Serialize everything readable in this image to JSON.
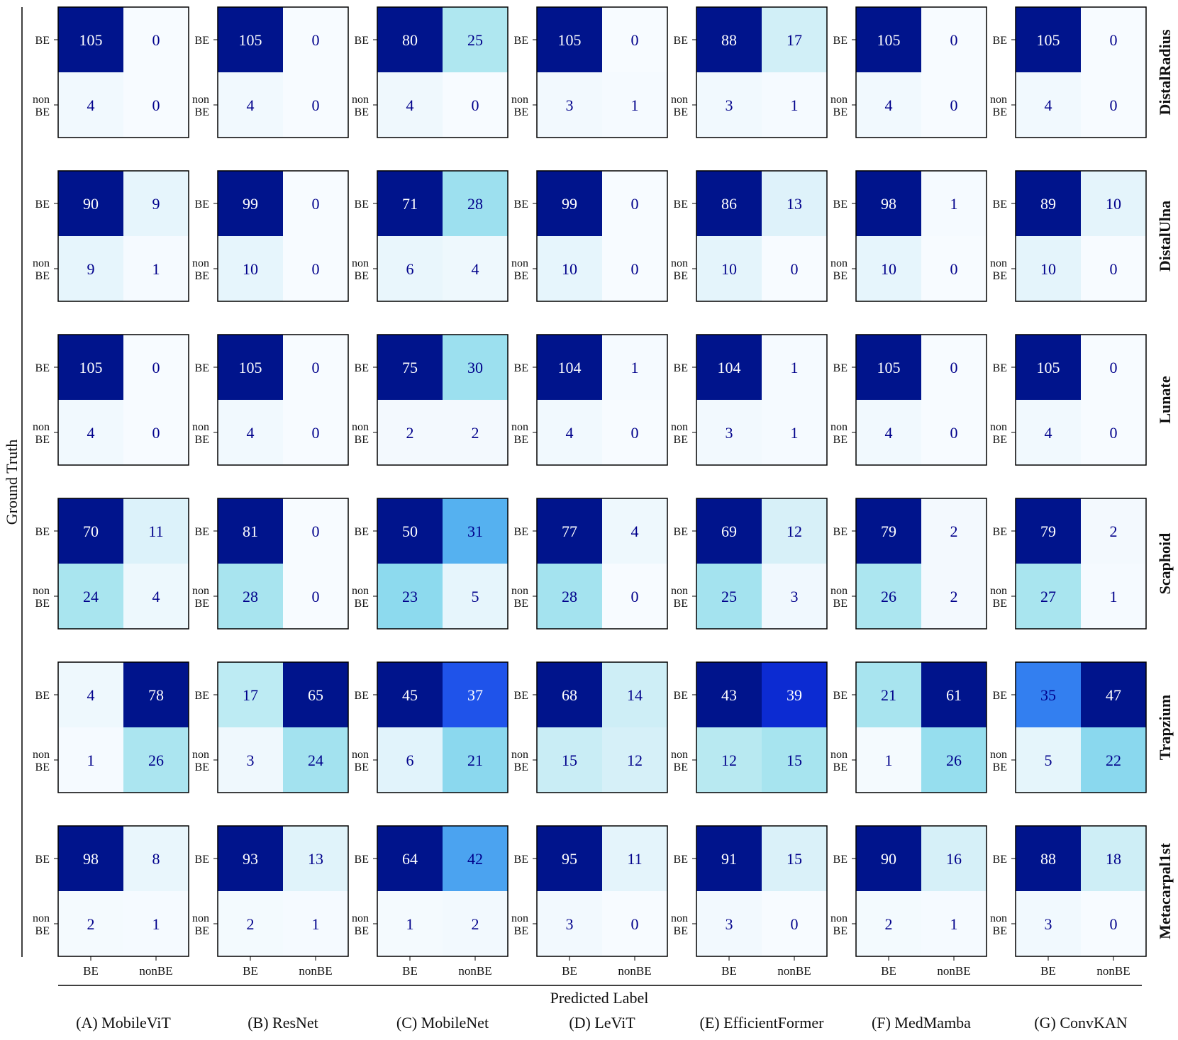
{
  "chart_data": {
    "type": "heatmap",
    "colormap": "Blues",
    "colors": {
      "text_on_light": "#00008B",
      "text_on_dark": "#ffffff",
      "border": "#000000"
    },
    "y_axis_label": "Ground Truth",
    "x_axis_label": "Predicted Label",
    "predicted_tick_labels": [
      "BE",
      "nonBE"
    ],
    "true_tick_labels": [
      "BE",
      "non BE"
    ],
    "models": [
      "(A) MobileViT",
      "(B) ResNet",
      "(C) MobileNet",
      "(D) LeViT",
      "(E) EfficientFormer",
      "(F) MedMamba",
      "(G) ConvKAN"
    ],
    "bones": [
      "DistalRadius",
      "DistalUlna",
      "Lunate",
      "Scaphoid",
      "Trapzium",
      "Metacarpal1st"
    ],
    "matrices": [
      [
        [
          [
            105,
            0
          ],
          [
            4,
            0
          ]
        ],
        [
          [
            105,
            0
          ],
          [
            4,
            0
          ]
        ],
        [
          [
            80,
            25
          ],
          [
            4,
            0
          ]
        ],
        [
          [
            105,
            0
          ],
          [
            3,
            1
          ]
        ],
        [
          [
            88,
            17
          ],
          [
            3,
            1
          ]
        ],
        [
          [
            105,
            0
          ],
          [
            4,
            0
          ]
        ],
        [
          [
            105,
            0
          ],
          [
            4,
            0
          ]
        ]
      ],
      [
        [
          [
            90,
            9
          ],
          [
            9,
            1
          ]
        ],
        [
          [
            99,
            0
          ],
          [
            10,
            0
          ]
        ],
        [
          [
            71,
            28
          ],
          [
            6,
            4
          ]
        ],
        [
          [
            99,
            0
          ],
          [
            10,
            0
          ]
        ],
        [
          [
            86,
            13
          ],
          [
            10,
            0
          ]
        ],
        [
          [
            98,
            1
          ],
          [
            10,
            0
          ]
        ],
        [
          [
            89,
            10
          ],
          [
            10,
            0
          ]
        ]
      ],
      [
        [
          [
            105,
            0
          ],
          [
            4,
            0
          ]
        ],
        [
          [
            105,
            0
          ],
          [
            4,
            0
          ]
        ],
        [
          [
            75,
            30
          ],
          [
            2,
            2
          ]
        ],
        [
          [
            104,
            1
          ],
          [
            4,
            0
          ]
        ],
        [
          [
            104,
            1
          ],
          [
            3,
            1
          ]
        ],
        [
          [
            105,
            0
          ],
          [
            4,
            0
          ]
        ],
        [
          [
            105,
            0
          ],
          [
            4,
            0
          ]
        ]
      ],
      [
        [
          [
            70,
            11
          ],
          [
            24,
            4
          ]
        ],
        [
          [
            81,
            0
          ],
          [
            28,
            0
          ]
        ],
        [
          [
            50,
            31
          ],
          [
            23,
            5
          ]
        ],
        [
          [
            77,
            4
          ],
          [
            28,
            0
          ]
        ],
        [
          [
            69,
            12
          ],
          [
            25,
            3
          ]
        ],
        [
          [
            79,
            2
          ],
          [
            26,
            2
          ]
        ],
        [
          [
            79,
            2
          ],
          [
            27,
            1
          ]
        ]
      ],
      [
        [
          [
            4,
            78
          ],
          [
            1,
            26
          ]
        ],
        [
          [
            17,
            65
          ],
          [
            3,
            24
          ]
        ],
        [
          [
            45,
            37
          ],
          [
            6,
            21
          ]
        ],
        [
          [
            68,
            14
          ],
          [
            15,
            12
          ]
        ],
        [
          [
            43,
            39
          ],
          [
            12,
            15
          ]
        ],
        [
          [
            21,
            61
          ],
          [
            1,
            26
          ]
        ],
        [
          [
            35,
            47
          ],
          [
            5,
            22
          ]
        ]
      ],
      [
        [
          [
            98,
            8
          ],
          [
            2,
            1
          ]
        ],
        [
          [
            93,
            13
          ],
          [
            2,
            1
          ]
        ],
        [
          [
            64,
            42
          ],
          [
            1,
            2
          ]
        ],
        [
          [
            95,
            11
          ],
          [
            3,
            0
          ]
        ],
        [
          [
            91,
            15
          ],
          [
            3,
            0
          ]
        ],
        [
          [
            90,
            16
          ],
          [
            2,
            1
          ]
        ],
        [
          [
            88,
            18
          ],
          [
            3,
            0
          ]
        ]
      ]
    ]
  }
}
